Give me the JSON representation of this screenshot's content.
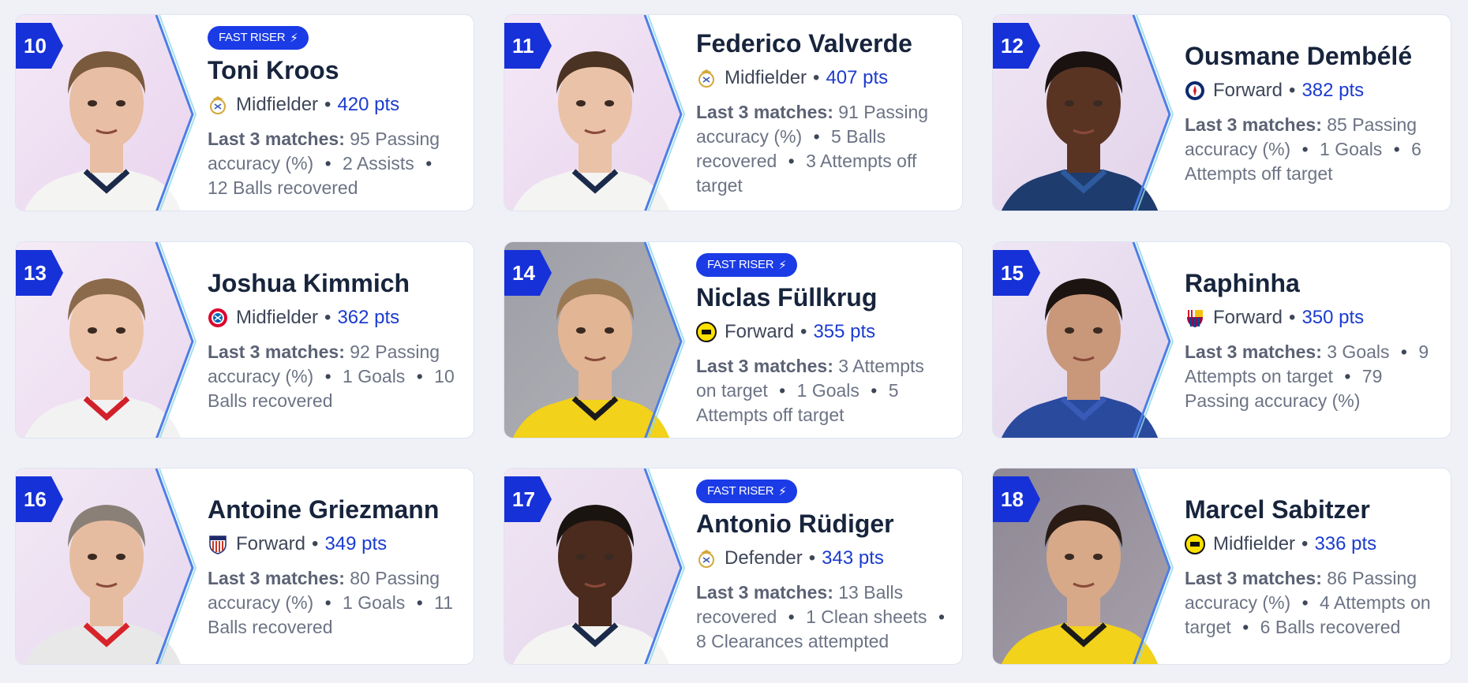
{
  "labels": {
    "fast_riser": "FAST RISER",
    "last3": "Last 3 matches:"
  },
  "colors": {
    "accent": "#1b3bd0",
    "badge": "#1a3be6",
    "rank": "#1631d8"
  },
  "players": [
    {
      "rank": "10",
      "name": "Toni Kroos",
      "fast_riser": true,
      "position": "Midfielder",
      "points": "420 pts",
      "club": "real-madrid-crest",
      "stats": [
        "95 Passing accuracy (%)",
        "2 Assists",
        "12 Balls recovered"
      ]
    },
    {
      "rank": "11",
      "name": "Federico Valverde",
      "fast_riser": false,
      "position": "Midfielder",
      "points": "407 pts",
      "club": "real-madrid-crest",
      "stats": [
        "91 Passing accuracy (%)",
        "5 Balls recovered",
        "3 Attempts off target"
      ]
    },
    {
      "rank": "12",
      "name": "Ousmane Dembélé",
      "fast_riser": false,
      "position": "Forward",
      "points": "382 pts",
      "club": "psg-crest",
      "stats": [
        "85 Passing accuracy (%)",
        "1 Goals",
        "6 Attempts off target"
      ]
    },
    {
      "rank": "13",
      "name": "Joshua Kimmich",
      "fast_riser": false,
      "position": "Midfielder",
      "points": "362 pts",
      "club": "bayern-crest",
      "stats": [
        "92 Passing accuracy (%)",
        "1 Goals",
        "10 Balls recovered"
      ]
    },
    {
      "rank": "14",
      "name": "Niclas Füllkrug",
      "fast_riser": true,
      "position": "Forward",
      "points": "355 pts",
      "club": "dortmund-crest",
      "stats": [
        "3 Attempts on target",
        "1 Goals",
        "5 Attempts off target"
      ]
    },
    {
      "rank": "15",
      "name": "Raphinha",
      "fast_riser": false,
      "position": "Forward",
      "points": "350 pts",
      "club": "barcelona-crest",
      "stats": [
        "3 Goals",
        "9 Attempts on target",
        "79 Passing accuracy (%)"
      ]
    },
    {
      "rank": "16",
      "name": "Antoine Griezmann",
      "fast_riser": false,
      "position": "Forward",
      "points": "349 pts",
      "club": "atletico-crest",
      "stats": [
        "80 Passing accuracy (%)",
        "1 Goals",
        "11 Balls recovered"
      ]
    },
    {
      "rank": "17",
      "name": "Antonio Rüdiger",
      "fast_riser": true,
      "position": "Defender",
      "points": "343 pts",
      "club": "real-madrid-crest",
      "stats": [
        "13 Balls recovered",
        "1 Clean sheets",
        "8 Clearances attempted"
      ]
    },
    {
      "rank": "18",
      "name": "Marcel Sabitzer",
      "fast_riser": false,
      "position": "Midfielder",
      "points": "336 pts",
      "club": "dortmund-crest",
      "stats": [
        "86 Passing accuracy (%)",
        "4 Attempts on target",
        "6 Balls recovered"
      ]
    }
  ]
}
